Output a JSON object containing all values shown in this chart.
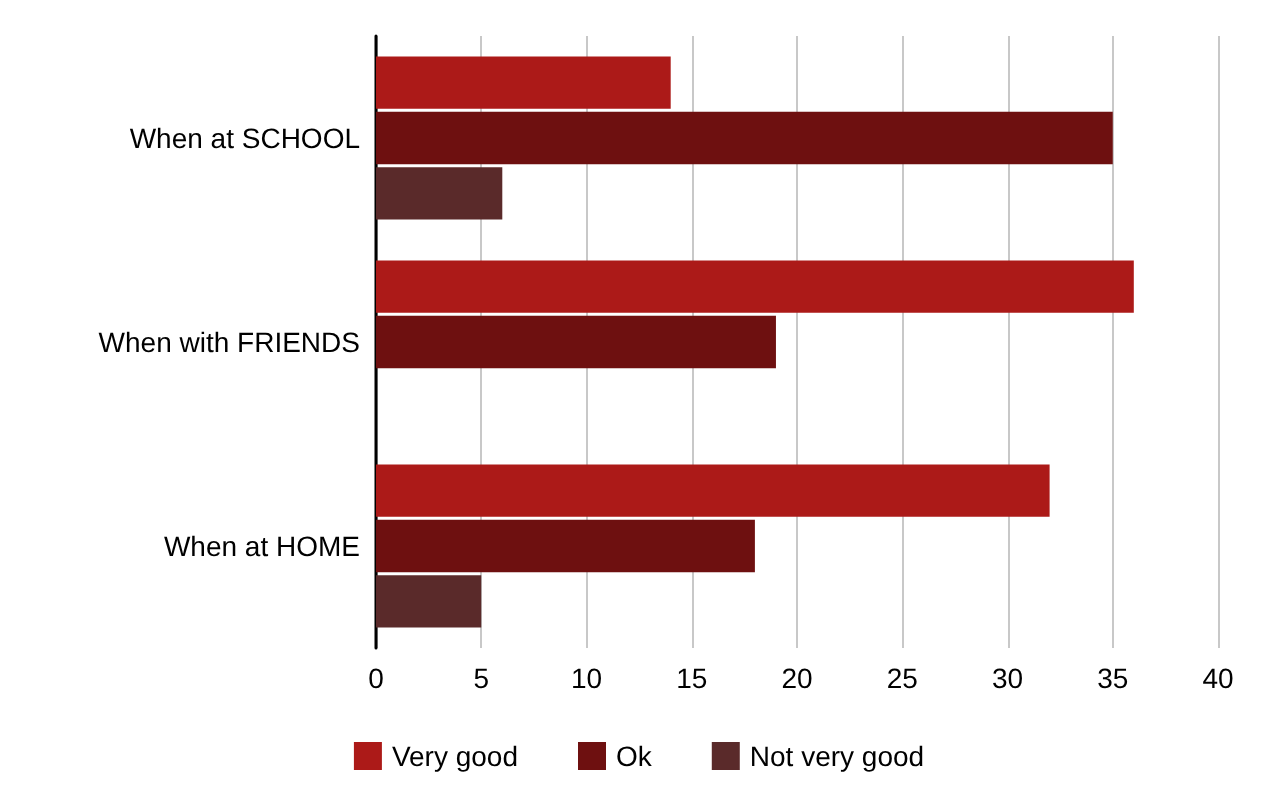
{
  "chart_data": {
    "type": "bar",
    "orientation": "horizontal",
    "categories": [
      "When at SCHOOL",
      "When with FRIENDS",
      "When at HOME"
    ],
    "series": [
      {
        "name": "Very good",
        "color": "#ac1a18",
        "values": [
          14,
          36,
          32
        ]
      },
      {
        "name": "Ok",
        "color": "#6e1010",
        "values": [
          35,
          19,
          18
        ]
      },
      {
        "name": "Not very good",
        "color": "#5a2a2a",
        "values": [
          6,
          null,
          5
        ]
      }
    ],
    "xlim": [
      0,
      40
    ],
    "xticks": [
      0,
      5,
      10,
      15,
      20,
      25,
      30,
      35,
      40
    ],
    "grid": "x",
    "legend": "bottom"
  }
}
